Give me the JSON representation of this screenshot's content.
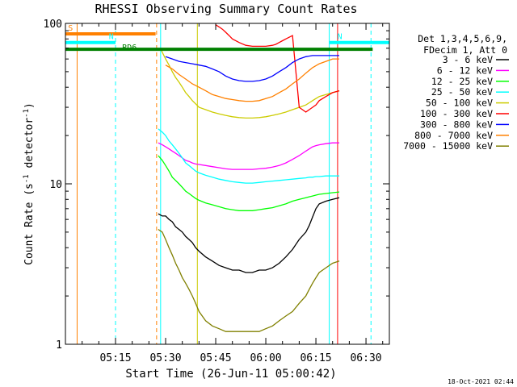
{
  "chart_data": {
    "type": "line",
    "title": "RHESSI Observing Summary Count Rates",
    "xlabel": "Start Time (26-Jun-11 05:00:42)",
    "ylabel_main": "Count Rate (s",
    "ylabel_sup": "-1",
    "ylabel_tail": " detector",
    "ylabel_sup2": "-1",
    "ylabel_end": ")",
    "y_scale": "log",
    "ylim": [
      1,
      100
    ],
    "xlim_minutes": [
      0,
      97
    ],
    "x_ticks": [
      {
        "label": "05:15",
        "minute": 15
      },
      {
        "label": "05:30",
        "minute": 30
      },
      {
        "label": "05:45",
        "minute": 45
      },
      {
        "label": "06:00",
        "minute": 60
      },
      {
        "label": "06:15",
        "minute": 75
      },
      {
        "label": "06:30",
        "minute": 90
      }
    ],
    "y_ticks": [
      {
        "label": "1",
        "value": 1
      },
      {
        "label": "10",
        "value": 10
      },
      {
        "label": "100",
        "value": 100
      }
    ],
    "legend_header": [
      "Det 1,3,4,5,6,9,",
      "FDecim 1, Att 0"
    ],
    "series": [
      {
        "name": "3 - 6 keV",
        "color": "#000000",
        "x": [
          27.8,
          29,
          30,
          31,
          32,
          33,
          34,
          35,
          36,
          37,
          38,
          39,
          40,
          42,
          44,
          46,
          48,
          50,
          52,
          54,
          56,
          58,
          60,
          62,
          64,
          66,
          68,
          70,
          72,
          73,
          74,
          75,
          76,
          78,
          80,
          82
        ],
        "y": [
          6.5,
          6.3,
          6.3,
          6.0,
          5.8,
          5.4,
          5.2,
          5.0,
          4.7,
          4.5,
          4.3,
          4.0,
          3.8,
          3.5,
          3.3,
          3.1,
          3.0,
          2.9,
          2.9,
          2.8,
          2.8,
          2.9,
          2.9,
          3.0,
          3.2,
          3.5,
          3.9,
          4.5,
          5.0,
          5.5,
          6.2,
          7.0,
          7.5,
          7.8,
          8.0,
          8.2
        ]
      },
      {
        "name": "6 - 12 keV",
        "color": "#ff00ff",
        "x": [
          27.8,
          29,
          30,
          31,
          32,
          33,
          34,
          35,
          36,
          37,
          38,
          39,
          40,
          42,
          44,
          46,
          48,
          50,
          52,
          54,
          56,
          58,
          60,
          62,
          64,
          66,
          68,
          70,
          72,
          73,
          74,
          75,
          76,
          78,
          80,
          82
        ],
        "y": [
          18,
          17.5,
          17,
          16.5,
          16,
          15.5,
          15,
          14.5,
          14,
          13.8,
          13.5,
          13.3,
          13.2,
          13,
          12.8,
          12.6,
          12.4,
          12.3,
          12.3,
          12.3,
          12.3,
          12.4,
          12.5,
          12.7,
          13,
          13.5,
          14.2,
          15,
          16,
          16.5,
          17,
          17.3,
          17.5,
          17.8,
          18,
          18
        ]
      },
      {
        "name": "12 - 25 keV",
        "color": "#00ff00",
        "x": [
          27.8,
          29,
          30,
          31,
          32,
          33,
          34,
          35,
          36,
          37,
          38,
          39,
          40,
          42,
          44,
          46,
          48,
          50,
          52,
          54,
          56,
          58,
          60,
          62,
          64,
          66,
          68,
          70,
          72,
          73,
          74,
          75,
          76,
          78,
          80,
          82
        ],
        "y": [
          15,
          14,
          13,
          12,
          11,
          10.5,
          10,
          9.5,
          9.0,
          8.7,
          8.4,
          8.1,
          7.9,
          7.6,
          7.4,
          7.2,
          7.0,
          6.9,
          6.8,
          6.8,
          6.8,
          6.9,
          7.0,
          7.1,
          7.3,
          7.5,
          7.8,
          8.0,
          8.2,
          8.3,
          8.4,
          8.5,
          8.6,
          8.7,
          8.8,
          8.9
        ]
      },
      {
        "name": "25 - 50 keV",
        "color": "#00ffff",
        "x": [
          27.8,
          29,
          30,
          31,
          32,
          33,
          34,
          35,
          36,
          37,
          38,
          39,
          40,
          42,
          44,
          46,
          48,
          50,
          52,
          54,
          56,
          58,
          60,
          62,
          64,
          66,
          68,
          70,
          72,
          73,
          74,
          75,
          76,
          78,
          80,
          82
        ],
        "y": [
          22,
          21,
          20,
          18.5,
          17.5,
          16.5,
          15.5,
          14.5,
          13.5,
          13,
          12.5,
          12,
          11.7,
          11.3,
          11,
          10.7,
          10.5,
          10.3,
          10.2,
          10.1,
          10.1,
          10.2,
          10.3,
          10.4,
          10.5,
          10.6,
          10.7,
          10.8,
          10.9,
          11,
          11,
          11.1,
          11.1,
          11.2,
          11.2,
          11.2
        ]
      },
      {
        "name": "50 - 100 keV",
        "color": "#cccc00",
        "x": [
          28.5,
          29,
          30,
          31,
          32,
          33,
          34,
          35,
          36,
          37,
          38,
          39,
          40,
          42,
          44,
          46,
          48,
          50,
          52,
          54,
          56,
          58,
          60,
          62,
          64,
          66,
          68,
          70,
          72,
          73,
          74,
          75,
          76,
          78,
          80,
          82
        ],
        "y": [
          70,
          66,
          60,
          55,
          50,
          46,
          43,
          40,
          37,
          35,
          33,
          31.5,
          30,
          29,
          28,
          27.3,
          26.7,
          26.2,
          25.9,
          25.7,
          25.7,
          25.9,
          26.2,
          26.7,
          27.3,
          28,
          29,
          30,
          31,
          32,
          33,
          34,
          35,
          36,
          37,
          38
        ]
      },
      {
        "name": "100 - 300 keV",
        "color": "#ff0000",
        "x": [
          45,
          46,
          47,
          48,
          49,
          50,
          52,
          54,
          56,
          58,
          60,
          62,
          63,
          64,
          65,
          66,
          67,
          68,
          70,
          72,
          73,
          74,
          75,
          76,
          78,
          80,
          82
        ],
        "y": [
          98,
          95,
          92,
          88,
          84,
          80,
          76,
          73,
          72,
          72,
          72,
          73,
          74,
          76,
          78,
          80,
          82,
          84,
          30,
          28,
          29,
          30,
          31,
          33,
          35,
          37,
          38
        ]
      },
      {
        "name": "300 - 800 keV",
        "color": "#0000ff",
        "x": [
          30,
          32,
          34,
          36,
          38,
          40,
          42,
          44,
          46,
          48,
          50,
          52,
          54,
          56,
          58,
          60,
          62,
          64,
          66,
          68,
          70,
          72,
          74,
          76,
          78,
          80,
          82
        ],
        "y": [
          62,
          60,
          58,
          57,
          56,
          55,
          54,
          52,
          50,
          47,
          45,
          44,
          43.5,
          43.5,
          44,
          45,
          47,
          50,
          53,
          57,
          60,
          62,
          63,
          63,
          63,
          63,
          63
        ]
      },
      {
        "name": "800 - 7000 keV",
        "color": "#ff8000",
        "x": [
          30,
          32,
          34,
          36,
          38,
          40,
          42,
          44,
          46,
          48,
          50,
          52,
          54,
          56,
          58,
          60,
          62,
          64,
          66,
          68,
          70,
          72,
          74,
          76,
          78,
          80,
          82
        ],
        "y": [
          55,
          52,
          48,
          45,
          42,
          40,
          38,
          36,
          35,
          34,
          33.5,
          33,
          32.7,
          32.7,
          33,
          34,
          35,
          37,
          39,
          42,
          45,
          49,
          53,
          56,
          58,
          60,
          60
        ]
      },
      {
        "name": "7000 - 15000 keV",
        "color": "#808000",
        "x": [
          27.8,
          29,
          30,
          31,
          32,
          33,
          34,
          35,
          36,
          37,
          38,
          39,
          40,
          42,
          44,
          46,
          48,
          50,
          52,
          54,
          56,
          58,
          60,
          62,
          64,
          66,
          68,
          70,
          72,
          73,
          74,
          75,
          76,
          78,
          80,
          82
        ],
        "y": [
          5.2,
          5.0,
          4.5,
          4.0,
          3.6,
          3.2,
          2.9,
          2.6,
          2.4,
          2.2,
          2.0,
          1.8,
          1.6,
          1.4,
          1.3,
          1.25,
          1.2,
          1.2,
          1.2,
          1.2,
          1.2,
          1.2,
          1.25,
          1.3,
          1.4,
          1.5,
          1.6,
          1.8,
          2.0,
          2.2,
          2.4,
          2.6,
          2.8,
          3.0,
          3.2,
          3.3
        ]
      }
    ],
    "verticals": [
      {
        "minute": 3.5,
        "color": "#ff8000",
        "dash": false
      },
      {
        "minute": 15.0,
        "color": "#00ffff",
        "dash": true
      },
      {
        "minute": 27.3,
        "color": "#ff8000",
        "dash": true
      },
      {
        "minute": 28.5,
        "color": "#00ffff",
        "dash": false
      },
      {
        "minute": 39.5,
        "color": "#cccc00",
        "dash": false
      },
      {
        "minute": 79.0,
        "color": "#00ffff",
        "dash": false
      },
      {
        "minute": 81.5,
        "color": "#ff0000",
        "dash": false
      },
      {
        "minute": 91.5,
        "color": "#00ffff",
        "dash": true
      }
    ],
    "bars": [
      {
        "label": "S",
        "color": "#ff8000",
        "x0": 0,
        "x1": 27.0,
        "y": 86
      },
      {
        "label": "N",
        "color": "#00ffff",
        "x0": 0,
        "x1": 15.0,
        "y": 76
      },
      {
        "label": "N",
        "color": "#00ffff",
        "x0": 79.0,
        "x1": 97,
        "y": 76
      },
      {
        "label": "RD6",
        "color": "#008000",
        "x0": 0,
        "x1": 92,
        "y": 69
      }
    ],
    "timestamp": "18-Oct-2021 02:44"
  }
}
